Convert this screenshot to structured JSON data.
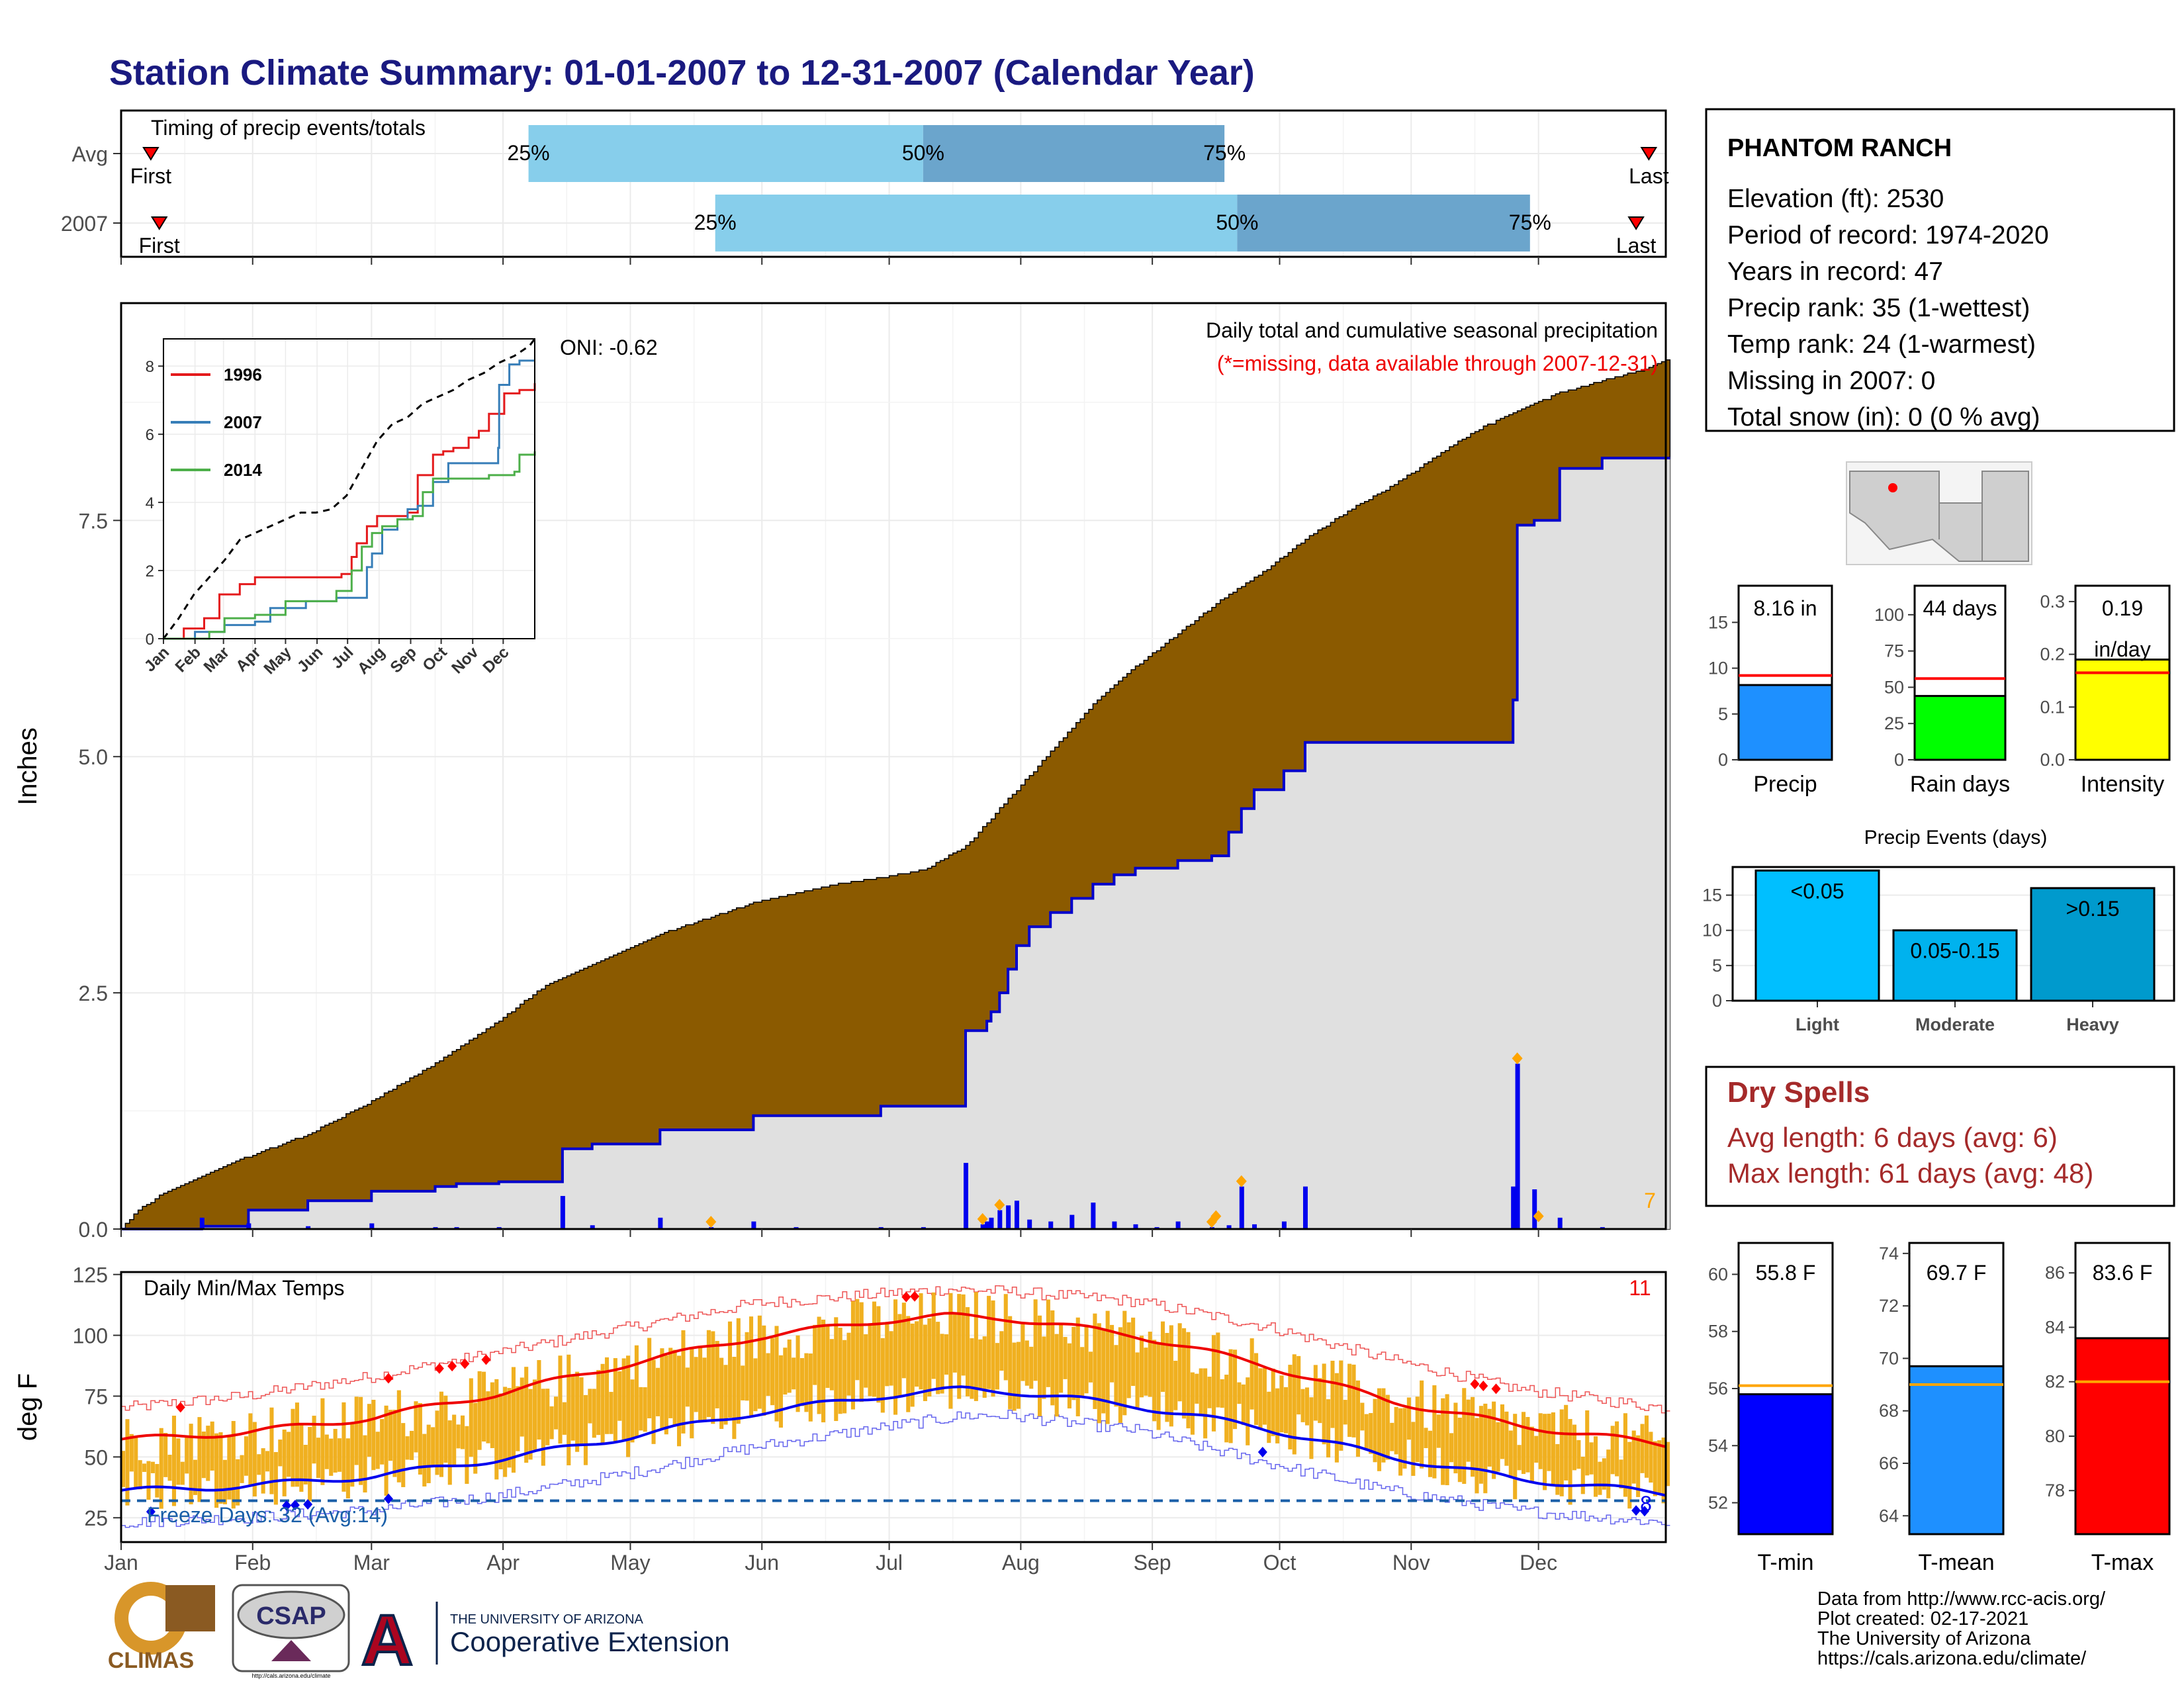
{
  "title": "Station Climate Summary: 01-01-2007 to 12-31-2007 (Calendar Year)",
  "colors": {
    "title": "#1a1a80",
    "precip_area": "#8b5a00",
    "observed_area": "#e0e0e0",
    "observed_line": "#0000cc",
    "daily_bar": "#0000ee",
    "marker": "#ffa500",
    "timing_light": "#87ceeb",
    "timing_dark": "#6ba5cc",
    "temp_bar": "#f0b020",
    "tmax_avg": "#ee0000",
    "tmin_avg": "#0000ee",
    "dry_spell": "#a52a2a"
  },
  "station": {
    "name": "PHANTOM RANCH",
    "lines": [
      "Elevation (ft): 2530",
      "Period of record: 1974-2020",
      "Years in record: 47",
      "Precip rank: 35 (1-wettest)",
      "Temp rank: 24 (1-warmest)",
      "Missing in 2007: 0",
      "Total snow (in): 0 (0 % avg)"
    ]
  },
  "timing": {
    "title": "Timing of precip events/totals",
    "rows": [
      {
        "label": "Avg",
        "first_label": "First",
        "last_label": "Last",
        "first": 8,
        "last": 361,
        "p25": 97,
        "p50": 190,
        "p75": 261,
        "p25_label": "25%",
        "p50_label": "50%",
        "p75_label": "75%"
      },
      {
        "label": "2007",
        "first_label": "First",
        "last_label": "Last",
        "first": 10,
        "last": 358,
        "p25": 141,
        "p50": 264,
        "p75": 333,
        "p25_label": "25%",
        "p50_label": "50%",
        "p75_label": "75%"
      }
    ]
  },
  "precip_panel": {
    "ylabel": "Inches",
    "yticks": [
      "0.0",
      "2.5",
      "5.0",
      "7.5"
    ],
    "label_line1": "Daily total and cumulative seasonal precipitation",
    "label_line2": "(*=missing, data available through 2007-12-31)",
    "oni": "ONI: -0.62",
    "corner_count": "7"
  },
  "inset": {
    "yticks": [
      "0",
      "2",
      "4",
      "6",
      "8"
    ],
    "months": [
      "Jan",
      "Feb",
      "Mar",
      "Apr",
      "May",
      "Jun",
      "Jul",
      "Aug",
      "Sep",
      "Oct",
      "Nov",
      "Dec"
    ],
    "legend": [
      {
        "name": "1996",
        "color": "#e41a1c"
      },
      {
        "name": "2007",
        "color": "#377eb8"
      },
      {
        "name": "2014",
        "color": "#4daf4a"
      }
    ]
  },
  "temp_panel": {
    "ylabel": "deg F",
    "title": "Daily Min/Max Temps",
    "yticks": [
      "25",
      "50",
      "75",
      "100",
      "125"
    ],
    "freeze_label": "Freeze Days: 32 (Avg:14)",
    "count_hot": "11",
    "count_cold": "8"
  },
  "months": [
    "Jan",
    "Feb",
    "Mar",
    "Apr",
    "May",
    "Jun",
    "Jul",
    "Aug",
    "Sep",
    "Oct",
    "Nov",
    "Dec"
  ],
  "mini_bars": [
    {
      "id": "precip",
      "label": "Precip",
      "value_label": "8.16 in",
      "value": 8.16,
      "avg": 9.2,
      "ymax": 19,
      "ticks": [
        "0",
        "5",
        "10",
        "15"
      ],
      "tickvals": [
        0,
        5,
        10,
        15
      ],
      "color": "#1e90ff"
    },
    {
      "id": "raindays",
      "label": "Rain days",
      "value_label": "44 days",
      "value": 44,
      "avg": 56,
      "ymax": 120,
      "ticks": [
        "0",
        "25",
        "50",
        "75",
        "100"
      ],
      "tickvals": [
        0,
        25,
        50,
        75,
        100
      ],
      "color": "#00ff00"
    },
    {
      "id": "intensity",
      "label": "Intensity",
      "value_label": "0.19",
      "value_label2": "in/day",
      "value": 0.19,
      "avg": 0.165,
      "ymax": 0.33,
      "ticks": [
        "0.0",
        "0.1",
        "0.2",
        "0.3"
      ],
      "tickvals": [
        0,
        0.1,
        0.2,
        0.3
      ],
      "color": "#ffff00"
    }
  ],
  "events": {
    "title": "Precip Events (days)",
    "ticks": [
      "0",
      "5",
      "10",
      "15"
    ],
    "tickvals": [
      0,
      5,
      10,
      15
    ],
    "ymax": 19,
    "bars": [
      {
        "name": "Light",
        "range": "<0.05",
        "value": 18.5,
        "color": "#00bfff"
      },
      {
        "name": "Moderate",
        "range": "0.05-0.15",
        "value": 10,
        "color": "#00b2ee"
      },
      {
        "name": "Heavy",
        "range": ">0.15",
        "value": 16,
        "color": "#009acd"
      }
    ]
  },
  "dry_spells": {
    "title": "Dry Spells",
    "avg": "Avg length: 6 days (avg: 6)",
    "max": "Max length: 61 days (avg: 48)"
  },
  "temp_bars": [
    {
      "id": "tmin",
      "label": "T-min",
      "value_label": "55.8 F",
      "value": 55.8,
      "avg": 56.1,
      "ymin": 50.9,
      "ymax": 61.1,
      "ticks": [
        "52",
        "54",
        "56",
        "58",
        "60"
      ],
      "tickvals": [
        52,
        54,
        56,
        58,
        60
      ],
      "color": "#0000ff"
    },
    {
      "id": "tmean",
      "label": "T-mean",
      "value_label": "69.7 F",
      "value": 69.7,
      "avg": 69.0,
      "ymin": 63.3,
      "ymax": 74.4,
      "ticks": [
        "64",
        "66",
        "68",
        "70",
        "72",
        "74"
      ],
      "tickvals": [
        64,
        66,
        68,
        70,
        72,
        74
      ],
      "color": "#1e90ff"
    },
    {
      "id": "tmax",
      "label": "T-max",
      "value_label": "83.6 F",
      "value": 83.6,
      "avg": 82.0,
      "ymin": 76.4,
      "ymax": 87.1,
      "ticks": [
        "78",
        "80",
        "82",
        "84",
        "86"
      ],
      "tickvals": [
        78,
        80,
        82,
        84,
        86
      ],
      "color": "#ff0000"
    }
  ],
  "credits": [
    "Data from http://www.rcc-acis.org/",
    "Plot created: 02-17-2021",
    "The University of Arizona",
    "https://cals.arizona.edu/climate/"
  ],
  "logos": {
    "climas": "CLIMAS",
    "csap": "CSAP",
    "csap_url": "http://cals.arizona.edu/climate",
    "ua_line1": "THE UNIVERSITY OF ARIZONA",
    "ua_line2": "Cooperative Extension"
  },
  "chart_data": [
    {
      "type": "bar",
      "title": "Timing of precip events/totals",
      "categories": [
        "Avg",
        "2007"
      ],
      "series": [
        {
          "name": "First",
          "values": [
            8,
            10
          ]
        },
        {
          "name": "25%",
          "values": [
            97,
            141
          ]
        },
        {
          "name": "50%",
          "values": [
            190,
            264
          ]
        },
        {
          "name": "75%",
          "values": [
            261,
            333
          ]
        },
        {
          "name": "Last",
          "values": [
            361,
            358
          ]
        }
      ],
      "xlim": [
        0,
        365
      ]
    },
    {
      "type": "area",
      "title": "Daily total and cumulative seasonal precipitation",
      "ylabel": "Inches",
      "ylim": [
        0,
        9.8
      ],
      "x_unit": "day of year",
      "series": [
        {
          "name": "",
          "role": "average-cumulative",
          "x": [
            1,
            5,
            10,
            15,
            20,
            30,
            45,
            60,
            75,
            90,
            100,
            110,
            120,
            130,
            140,
            150,
            160,
            170,
            180,
            190,
            200,
            210,
            220,
            230,
            240,
            250,
            260,
            270,
            280,
            290,
            300,
            310,
            320,
            330,
            340,
            350,
            360,
            365
          ],
          "values": [
            0,
            0.2,
            0.35,
            0.45,
            0.55,
            0.75,
            1.0,
            1.35,
            1.75,
            2.2,
            2.55,
            2.75,
            2.95,
            3.15,
            3.3,
            3.45,
            3.55,
            3.65,
            3.72,
            3.8,
            4.05,
            4.55,
            5.05,
            5.55,
            5.95,
            6.3,
            6.65,
            6.95,
            7.3,
            7.6,
            7.85,
            8.15,
            8.45,
            8.65,
            8.85,
            8.98,
            9.1,
            9.2
          ]
        },
        {
          "name": "",
          "role": "observed-cumulative",
          "x": [
            1,
            20,
            31,
            45,
            60,
            75,
            80,
            90,
            100,
            105,
            112,
            120,
            128,
            140,
            150,
            160,
            170,
            180,
            190,
            200,
            204,
            205,
            206,
            208,
            210,
            212,
            215,
            220,
            225,
            230,
            235,
            240,
            245,
            250,
            258,
            262,
            265,
            268,
            275,
            280,
            300,
            310,
            320,
            329,
            330,
            334,
            340,
            350,
            365
          ],
          "values": [
            0,
            0.03,
            0.2,
            0.3,
            0.4,
            0.45,
            0.48,
            0.5,
            0.5,
            0.85,
            0.9,
            0.9,
            1.05,
            1.05,
            1.2,
            1.2,
            1.2,
            1.3,
            1.3,
            2.1,
            2.1,
            2.2,
            2.3,
            2.5,
            2.75,
            3.0,
            3.2,
            3.35,
            3.5,
            3.65,
            3.75,
            3.82,
            3.82,
            3.9,
            3.95,
            4.2,
            4.45,
            4.65,
            4.85,
            5.15,
            5.15,
            5.15,
            5.15,
            5.6,
            7.45,
            7.5,
            8.05,
            8.16,
            8.16
          ]
        },
        {
          "name": "",
          "role": "daily",
          "x": [
            20,
            31,
            45,
            60,
            75,
            80,
            90,
            105,
            112,
            128,
            140,
            150,
            160,
            170,
            180,
            190,
            200,
            204,
            205,
            206,
            208,
            210,
            212,
            215,
            220,
            225,
            230,
            235,
            240,
            245,
            250,
            258,
            262,
            265,
            268,
            275,
            280,
            329,
            330,
            334,
            340,
            350
          ],
          "values": [
            0.12,
            0.06,
            0.03,
            0.06,
            0.02,
            0.02,
            0.02,
            0.35,
            0.04,
            0.12,
            0.02,
            0.08,
            0.02,
            0.01,
            0.02,
            0.02,
            0.7,
            0.05,
            0.08,
            0.12,
            0.2,
            0.25,
            0.3,
            0.1,
            0.08,
            0.15,
            0.28,
            0.08,
            0.05,
            0.02,
            0.08,
            0.02,
            0.04,
            0.45,
            0.05,
            0.08,
            0.45,
            0.45,
            1.75,
            0.42,
            0.12,
            0.02
          ]
        }
      ],
      "markers_x": [
        140,
        204,
        208,
        258,
        259,
        265,
        330,
        335
      ]
    },
    {
      "type": "line",
      "title": "",
      "ylim": [
        0,
        8.8
      ],
      "series": [
        {
          "name": "",
          "x": [
            0,
            15,
            30,
            45,
            60,
            75,
            90,
            105,
            120,
            135,
            150,
            165,
            180,
            195,
            210,
            225,
            240,
            255,
            270,
            285,
            300,
            315,
            330,
            345,
            360,
            365
          ],
          "values": [
            0,
            0.6,
            1.3,
            1.8,
            2.3,
            2.9,
            3.1,
            3.3,
            3.5,
            3.7,
            3.7,
            3.8,
            4.2,
            5.0,
            5.8,
            6.3,
            6.5,
            6.9,
            7.1,
            7.3,
            7.6,
            7.8,
            8.1,
            8.3,
            8.6,
            8.8
          ]
        },
        {
          "name": "1996",
          "x": [
            0,
            20,
            40,
            55,
            75,
            90,
            105,
            120,
            150,
            175,
            185,
            190,
            200,
            210,
            220,
            240,
            250,
            265,
            275,
            285,
            300,
            310,
            320,
            335,
            350,
            365
          ],
          "values": [
            0,
            0.3,
            0.6,
            1.3,
            1.6,
            1.8,
            1.8,
            1.8,
            1.8,
            1.9,
            2.4,
            2.8,
            3.3,
            3.6,
            3.6,
            3.7,
            4.8,
            5.4,
            5.5,
            5.6,
            5.9,
            6.1,
            6.6,
            7.2,
            7.3,
            7.5
          ]
        },
        {
          "name": "2007",
          "x": [
            0,
            31,
            60,
            90,
            105,
            140,
            170,
            200,
            205,
            215,
            230,
            240,
            250,
            265,
            280,
            320,
            329,
            330,
            340,
            350,
            365
          ],
          "values": [
            0,
            0.2,
            0.4,
            0.5,
            0.9,
            1.1,
            1.2,
            2.1,
            2.5,
            3.2,
            3.5,
            3.8,
            3.9,
            4.6,
            5.15,
            5.15,
            5.6,
            7.45,
            8.05,
            8.16,
            8.16
          ]
        },
        {
          "name": "2014",
          "x": [
            0,
            45,
            60,
            90,
            120,
            150,
            170,
            185,
            195,
            205,
            215,
            230,
            245,
            255,
            265,
            285,
            320,
            345,
            350,
            365
          ],
          "values": [
            0,
            0.2,
            0.6,
            0.7,
            1.1,
            1.1,
            1.4,
            2.0,
            2.7,
            3.1,
            3.3,
            3.5,
            3.6,
            4.3,
            4.7,
            4.7,
            4.8,
            4.9,
            5.4,
            5.5
          ]
        }
      ]
    },
    {
      "type": "line",
      "title": "Daily Min/Max Temps",
      "ylabel": "deg F",
      "ylim": [
        15,
        126
      ],
      "series": [
        {
          "name": "",
          "role": "avg-tmax",
          "x": [
            1,
            30,
            60,
            90,
            120,
            150,
            180,
            196,
            210,
            240,
            270,
            300,
            330,
            365
          ],
          "values": [
            57,
            60,
            66,
            76,
            88,
            99,
            106,
            108,
            107,
            100,
            88,
            73,
            63,
            55
          ]
        },
        {
          "name": "",
          "role": "avg-tmin",
          "x": [
            1,
            30,
            60,
            90,
            120,
            150,
            180,
            200,
            210,
            240,
            270,
            300,
            330,
            365
          ],
          "values": [
            36,
            38,
            42,
            49,
            58,
            68,
            75,
            78,
            77,
            71,
            62,
            50,
            41,
            35
          ]
        },
        {
          "name": "",
          "role": "record-high",
          "x": [
            1,
            30,
            60,
            90,
            120,
            150,
            180,
            196,
            210,
            240,
            270,
            300,
            330,
            365
          ],
          "values": [
            70,
            75,
            83,
            93,
            103,
            113,
            117,
            119,
            118,
            114,
            104,
            90,
            78,
            70
          ]
        },
        {
          "name": "",
          "role": "record-low",
          "x": [
            1,
            30,
            60,
            90,
            120,
            150,
            180,
            200,
            210,
            240,
            270,
            300,
            330,
            365
          ],
          "values": [
            23,
            25,
            28,
            34,
            43,
            54,
            62,
            67,
            67,
            61,
            48,
            36,
            28,
            23
          ]
        }
      ],
      "freeze_line": 32
    }
  ]
}
